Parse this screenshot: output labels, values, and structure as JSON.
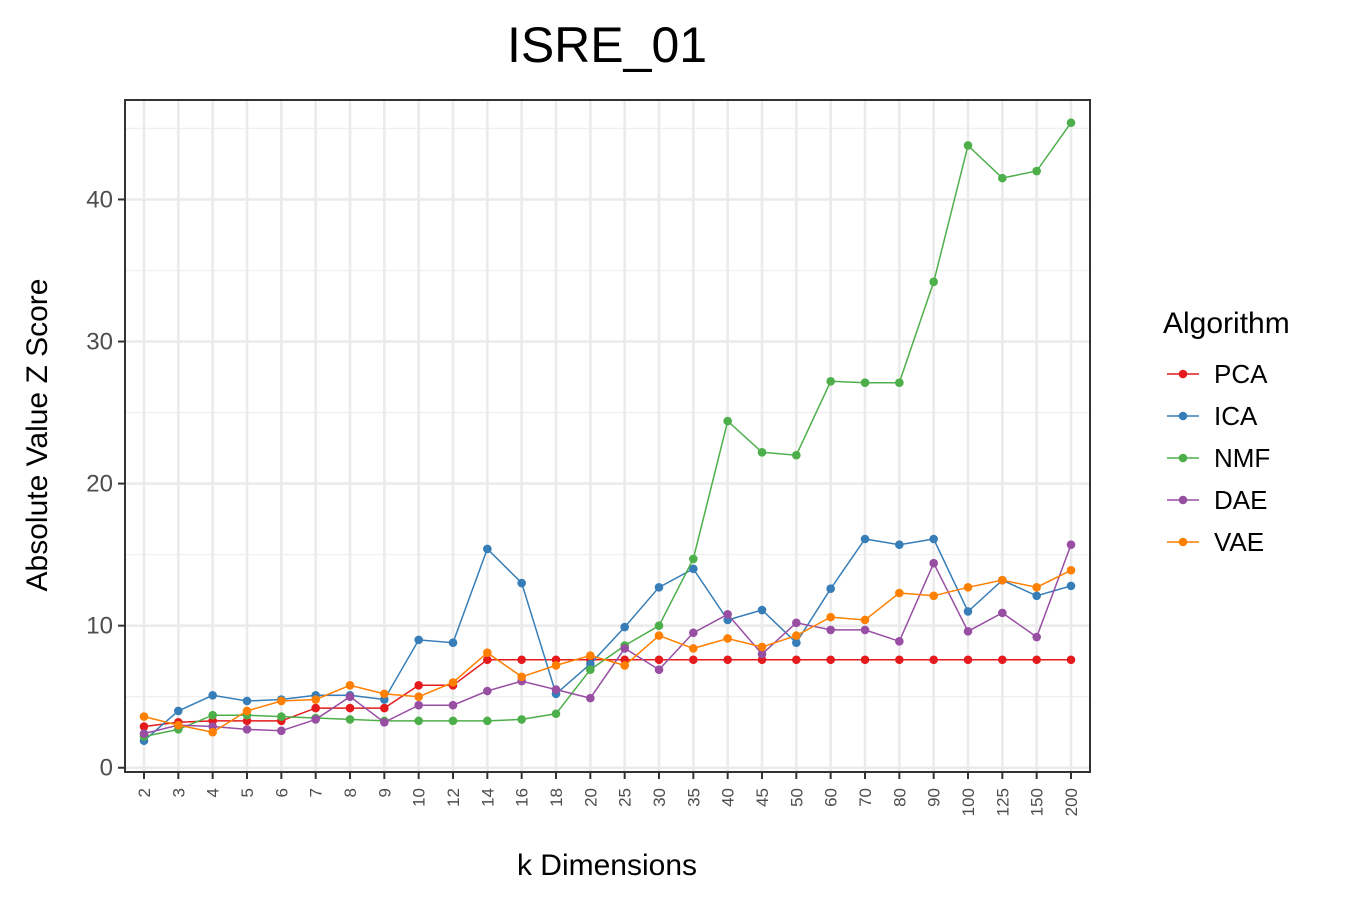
{
  "chart_data": {
    "type": "line",
    "title": "ISRE_01",
    "xlabel": "k Dimensions",
    "ylabel": "Absolute Value Z Score",
    "categories": [
      "2",
      "3",
      "4",
      "5",
      "6",
      "7",
      "8",
      "9",
      "10",
      "12",
      "14",
      "16",
      "18",
      "20",
      "25",
      "30",
      "35",
      "40",
      "45",
      "50",
      "60",
      "70",
      "80",
      "90",
      "100",
      "125",
      "150",
      "200"
    ],
    "ylim": [
      -0.3,
      47
    ],
    "yticks": [
      0,
      10,
      20,
      30,
      40
    ],
    "grid": true,
    "legend": {
      "title": "Algorithm",
      "placement": "right"
    },
    "series": [
      {
        "name": "PCA",
        "color": "#e41a1c",
        "values": [
          2.9,
          3.2,
          3.3,
          3.3,
          3.3,
          4.2,
          4.2,
          4.2,
          5.8,
          5.8,
          7.6,
          7.6,
          7.6,
          7.6,
          7.6,
          7.6,
          7.6,
          7.6,
          7.6,
          7.6,
          7.6,
          7.6,
          7.6,
          7.6,
          7.6,
          7.6,
          7.6,
          7.6
        ]
      },
      {
        "name": "ICA",
        "color": "#377eb8",
        "values": [
          1.9,
          4.0,
          5.1,
          4.7,
          4.8,
          5.1,
          5.1,
          4.8,
          9.0,
          8.8,
          15.4,
          13.0,
          5.2,
          7.3,
          9.9,
          12.7,
          14.0,
          10.4,
          11.1,
          8.8,
          12.6,
          16.1,
          15.7,
          16.1,
          11.0,
          13.2,
          12.1,
          12.8
        ]
      },
      {
        "name": "NMF",
        "color": "#4daf4a",
        "values": [
          2.2,
          2.7,
          3.7,
          3.7,
          3.6,
          3.5,
          3.4,
          3.3,
          3.3,
          3.3,
          3.3,
          3.4,
          3.8,
          6.9,
          8.6,
          10.0,
          14.7,
          24.4,
          22.2,
          22.0,
          27.2,
          27.1,
          27.1,
          34.2,
          43.8,
          41.5,
          42.0,
          45.4
        ]
      },
      {
        "name": "DAE",
        "color": "#984ea3",
        "values": [
          2.4,
          3.0,
          2.9,
          2.7,
          2.6,
          3.4,
          5.0,
          3.2,
          4.4,
          4.4,
          5.4,
          6.1,
          5.5,
          4.9,
          8.4,
          6.9,
          9.5,
          10.8,
          8.0,
          10.2,
          9.7,
          9.7,
          8.9,
          14.4,
          9.6,
          10.9,
          9.2,
          15.7
        ]
      },
      {
        "name": "VAE",
        "color": "#ff7f00",
        "values": [
          3.6,
          3.0,
          2.5,
          4.0,
          4.7,
          4.8,
          5.8,
          5.2,
          5.0,
          6.0,
          8.1,
          6.4,
          7.2,
          7.9,
          7.2,
          9.3,
          8.4,
          9.1,
          8.5,
          9.3,
          10.6,
          10.4,
          12.3,
          12.1,
          12.7,
          13.2,
          12.7,
          13.9
        ]
      }
    ]
  }
}
